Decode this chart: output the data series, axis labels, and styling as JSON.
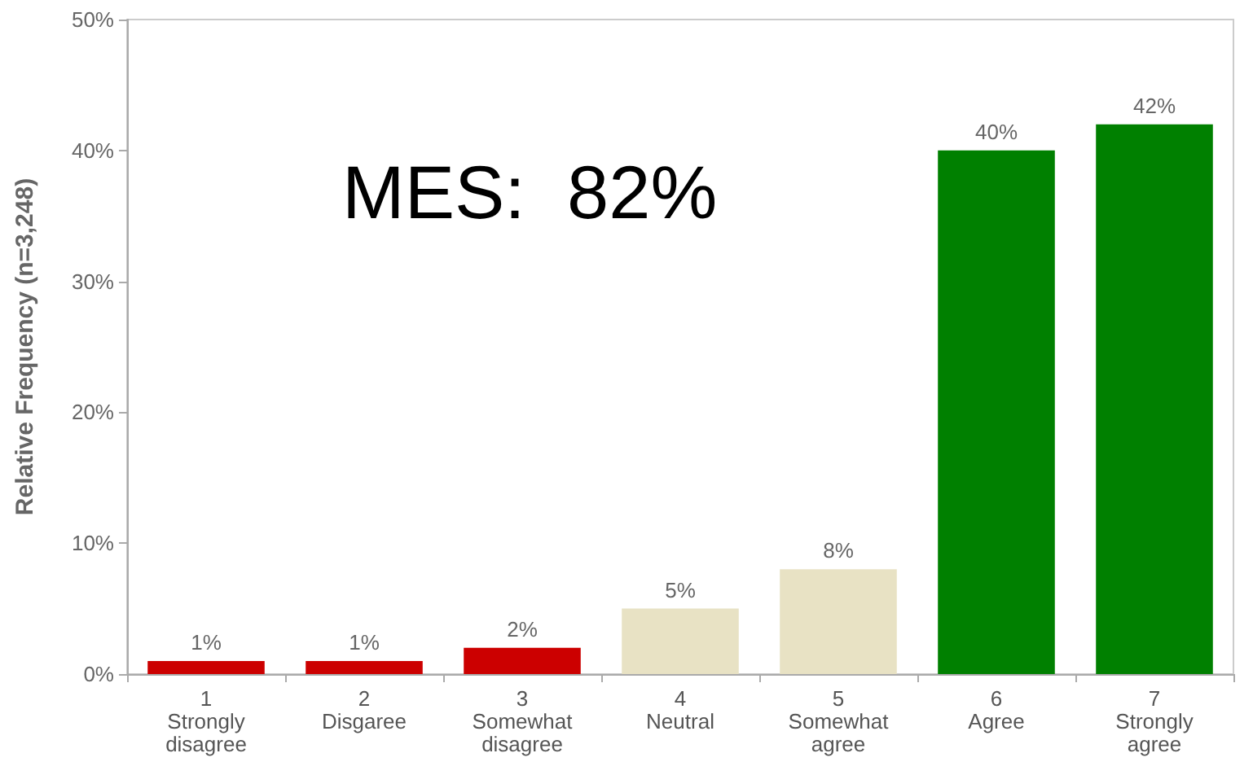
{
  "chart_data": {
    "type": "bar",
    "ylabel": "Relative Frequency (n=3,248)",
    "categories": [
      "1\nStrongly\ndisagree",
      "2\nDisgaree",
      "3\nSomewhat\ndisagree",
      "4\nNeutral",
      "5\nSomewhat\nagree",
      "6\nAgree",
      "7\nStrongly\nagree"
    ],
    "values": [
      1,
      1,
      2,
      5,
      8,
      40,
      42
    ],
    "colors": [
      "#cc0000",
      "#cc0000",
      "#cc0000",
      "#e8e2c4",
      "#e8e2c4",
      "#008000",
      "#008000"
    ],
    "value_labels": [
      "1%",
      "1%",
      "2%",
      "5%",
      "8%",
      "40%",
      "42%"
    ],
    "ylim": [
      0,
      50
    ],
    "yticks": [
      {
        "value": 0,
        "label": "0%"
      },
      {
        "value": 10,
        "label": "10%"
      },
      {
        "value": 20,
        "label": "20%"
      },
      {
        "value": 30,
        "label": "30%"
      },
      {
        "value": 40,
        "label": "40%"
      },
      {
        "value": 50,
        "label": "50%"
      }
    ],
    "annotations": [
      "MES:  82%"
    ],
    "grid": false
  }
}
